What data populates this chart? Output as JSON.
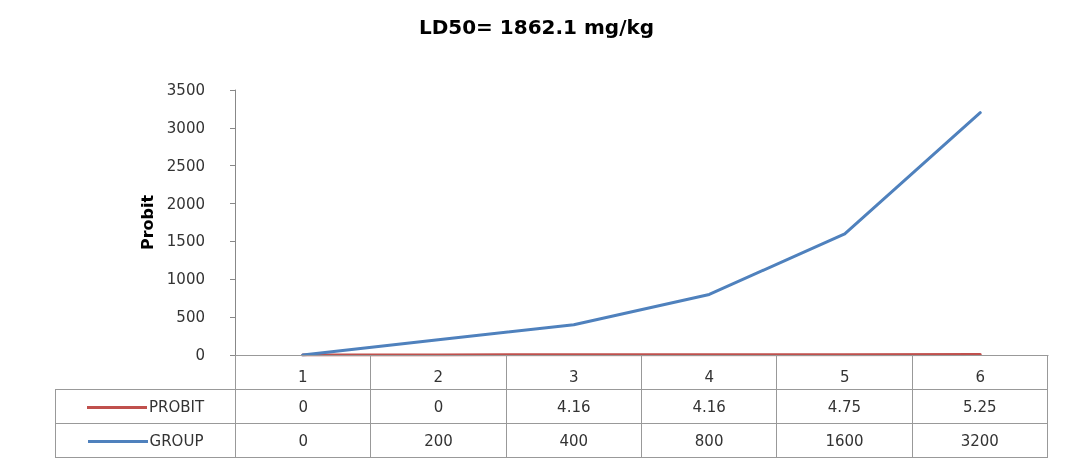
{
  "chart_data": {
    "type": "line",
    "title": "LD50= 1862.1 mg/kg",
    "ylabel": "Probit",
    "categories": [
      "1",
      "2",
      "3",
      "4",
      "5",
      "6"
    ],
    "series": [
      {
        "name": "PROBIT",
        "color": "#c0504d",
        "values": [
          0,
          0,
          4.16,
          4.16,
          4.75,
          5.25
        ]
      },
      {
        "name": "GROUP",
        "color": "#4f81bd",
        "values": [
          0,
          200,
          400,
          800,
          1600,
          3200
        ]
      }
    ],
    "ylim": [
      0,
      3500
    ],
    "yticks": [
      0,
      500,
      1000,
      1500,
      2000,
      2500,
      3000,
      3500
    ],
    "grid": false,
    "legend": "bottom",
    "marker": "none",
    "line_style": "solid",
    "data_labels": true
  }
}
